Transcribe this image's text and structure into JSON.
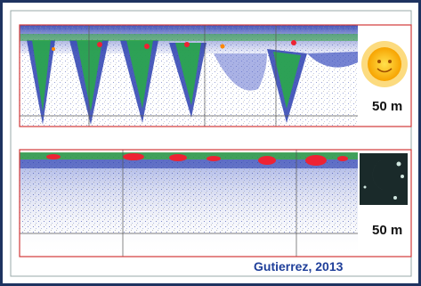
{
  "panels": [
    {
      "depth_label": "50 m"
    },
    {
      "depth_label": "50 m"
    }
  ],
  "citation": "Gutierrez, 2013"
}
